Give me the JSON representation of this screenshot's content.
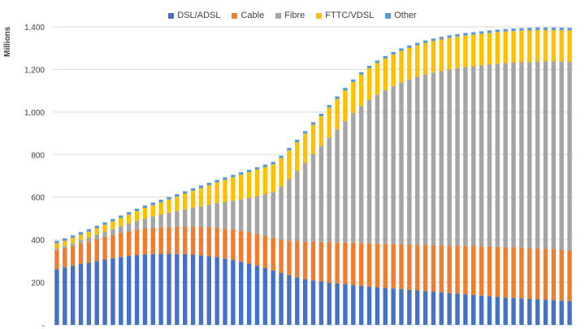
{
  "chart_data": {
    "type": "bar",
    "stacked": true,
    "ylabel": "Millions",
    "ylim": [
      0,
      1400
    ],
    "yticks": [
      "-",
      "200",
      "400",
      "600",
      "800",
      "1,000",
      "1,200",
      "1,400"
    ],
    "grid": true,
    "legend_position": "top",
    "series": [
      {
        "name": "DSL/ADSL",
        "color": "#4472C4",
        "values": [
          262,
          270,
          278,
          286,
          293,
          300,
          307,
          313,
          319,
          324,
          328,
          331,
          333,
          334,
          334,
          333,
          332,
          330,
          327,
          323,
          318,
          312,
          305,
          297,
          288,
          278,
          267,
          256,
          244,
          233,
          223,
          215,
          209,
          204,
          199,
          195,
          191,
          187,
          183,
          180,
          177,
          174,
          171,
          168,
          165,
          162,
          159,
          156,
          153,
          150,
          147,
          144,
          141,
          138,
          135,
          132,
          129,
          127,
          125,
          122,
          120,
          118,
          116,
          114,
          112
        ]
      },
      {
        "name": "Cable",
        "color": "#ED7D31",
        "values": [
          88,
          90,
          93,
          96,
          99,
          103,
          106,
          109,
          112,
          115,
          118,
          121,
          123,
          125,
          127,
          129,
          131,
          133,
          135,
          137,
          139,
          141,
          143,
          145,
          147,
          149,
          151,
          153,
          157,
          162,
          170,
          176,
          182,
          186,
          190,
          193,
          196,
          199,
          201,
          203,
          205,
          207,
          209,
          211,
          213,
          215,
          217,
          219,
          221,
          223,
          225,
          227,
          229,
          231,
          233,
          235,
          236,
          237,
          238,
          239,
          240,
          240,
          240,
          239,
          238
        ]
      },
      {
        "name": "Fibre",
        "color": "#A5A5A5",
        "values": [
          8,
          10,
          12,
          15,
          18,
          21,
          25,
          29,
          33,
          38,
          43,
          48,
          54,
          60,
          66,
          73,
          80,
          88,
          96,
          105,
          115,
          125,
          136,
          148,
          162,
          178,
          196,
          215,
          250,
          290,
          330,
          370,
          410,
          450,
          490,
          530,
          570,
          610,
          645,
          675,
          700,
          722,
          742,
          760,
          775,
          788,
          800,
          810,
          819,
          827,
          834,
          840,
          845,
          850,
          855,
          860,
          865,
          868,
          871,
          874,
          877,
          880,
          882,
          884,
          886
        ]
      },
      {
        "name": "FTTC/VDSL",
        "color": "#FFC000",
        "values": [
          25,
          25,
          26,
          27,
          28,
          30,
          32,
          35,
          38,
          41,
          45,
          49,
          53,
          57,
          62,
          67,
          73,
          79,
          85,
          91,
          97,
          103,
          109,
          115,
          120,
          124,
          127,
          130,
          132,
          134,
          135,
          137,
          139,
          140,
          142,
          143,
          144,
          145,
          146,
          147,
          148,
          148,
          148,
          148,
          148,
          148,
          148,
          148,
          148,
          148,
          148,
          148,
          148,
          148,
          148,
          148,
          148,
          148,
          148,
          148,
          148,
          147,
          147,
          147,
          147
        ]
      },
      {
        "name": "Other",
        "color": "#5B9BD5",
        "values": [
          12,
          12,
          12,
          12,
          12,
          12,
          12,
          12,
          12,
          12,
          12,
          12,
          12,
          12,
          12,
          12,
          12,
          12,
          12,
          12,
          12,
          12,
          12,
          12,
          12,
          12,
          12,
          12,
          12,
          12,
          12,
          12,
          12,
          12,
          12,
          12,
          12,
          12,
          12,
          12,
          12,
          12,
          12,
          12,
          12,
          12,
          12,
          12,
          12,
          12,
          12,
          12,
          12,
          12,
          12,
          12,
          12,
          12,
          12,
          12,
          12,
          12,
          12,
          12,
          12
        ]
      }
    ]
  }
}
